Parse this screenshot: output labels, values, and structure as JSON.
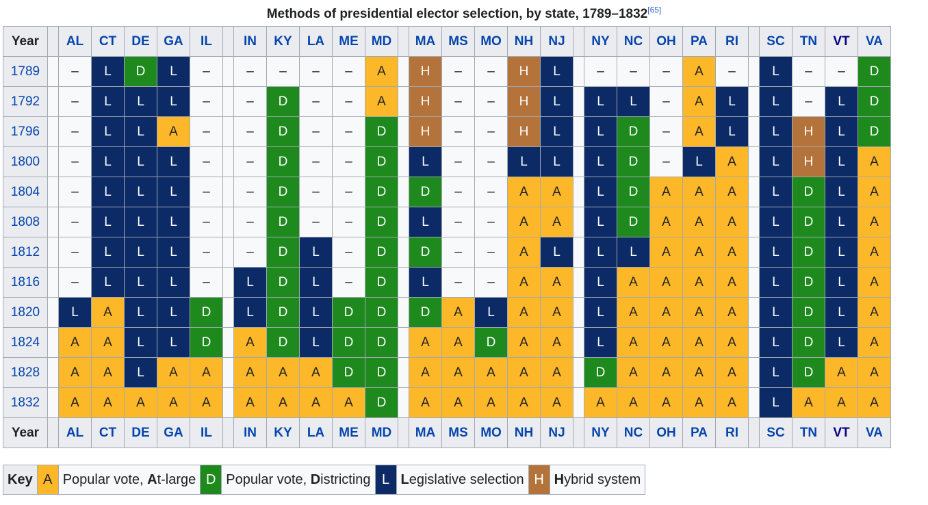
{
  "caption": {
    "title": "Methods of presidential elector selection, by state, 1789–1832",
    "ref": "[65]"
  },
  "header": {
    "year_label": "Year"
  },
  "groups": [
    [
      "AL",
      "CT",
      "DE",
      "GA",
      "IL"
    ],
    [
      "IN",
      "KY",
      "LA",
      "ME",
      "MD"
    ],
    [
      "MA",
      "MS",
      "MO",
      "NH",
      "NJ"
    ],
    [
      "NY",
      "NC",
      "OH",
      "PA",
      "RI"
    ],
    [
      "SC",
      "TN",
      "VT",
      "VA"
    ]
  ],
  "visited_states": [
    "VT"
  ],
  "rows": [
    {
      "year": "1789",
      "values": [
        "–",
        "L",
        "D",
        "L",
        "–",
        "–",
        "–",
        "–",
        "–",
        "A",
        "H",
        "–",
        "–",
        "H",
        "L",
        "–",
        "–",
        "–",
        "A",
        "–",
        "L",
        "–",
        "–",
        "D"
      ]
    },
    {
      "year": "1792",
      "values": [
        "–",
        "L",
        "L",
        "L",
        "–",
        "–",
        "D",
        "–",
        "–",
        "A",
        "H",
        "–",
        "–",
        "H",
        "L",
        "L",
        "L",
        "–",
        "A",
        "L",
        "L",
        "–",
        "L",
        "D"
      ]
    },
    {
      "year": "1796",
      "values": [
        "–",
        "L",
        "L",
        "A",
        "–",
        "–",
        "D",
        "–",
        "–",
        "D",
        "H",
        "–",
        "–",
        "H",
        "L",
        "L",
        "D",
        "–",
        "A",
        "L",
        "L",
        "H",
        "L",
        "D"
      ]
    },
    {
      "year": "1800",
      "values": [
        "–",
        "L",
        "L",
        "L",
        "–",
        "–",
        "D",
        "–",
        "–",
        "D",
        "L",
        "–",
        "–",
        "L",
        "L",
        "L",
        "D",
        "–",
        "L",
        "A",
        "L",
        "H",
        "L",
        "A"
      ]
    },
    {
      "year": "1804",
      "values": [
        "–",
        "L",
        "L",
        "L",
        "–",
        "–",
        "D",
        "–",
        "–",
        "D",
        "D",
        "–",
        "–",
        "A",
        "A",
        "L",
        "D",
        "A",
        "A",
        "A",
        "L",
        "D",
        "L",
        "A"
      ]
    },
    {
      "year": "1808",
      "values": [
        "–",
        "L",
        "L",
        "L",
        "–",
        "–",
        "D",
        "–",
        "–",
        "D",
        "L",
        "–",
        "–",
        "A",
        "A",
        "L",
        "D",
        "A",
        "A",
        "A",
        "L",
        "D",
        "L",
        "A"
      ]
    },
    {
      "year": "1812",
      "values": [
        "–",
        "L",
        "L",
        "L",
        "–",
        "–",
        "D",
        "L",
        "–",
        "D",
        "D",
        "–",
        "–",
        "A",
        "L",
        "L",
        "L",
        "A",
        "A",
        "A",
        "L",
        "D",
        "L",
        "A"
      ]
    },
    {
      "year": "1816",
      "values": [
        "–",
        "L",
        "L",
        "L",
        "–",
        "L",
        "D",
        "L",
        "–",
        "D",
        "L",
        "–",
        "–",
        "A",
        "A",
        "L",
        "A",
        "A",
        "A",
        "A",
        "L",
        "D",
        "L",
        "A"
      ]
    },
    {
      "year": "1820",
      "values": [
        "L",
        "A",
        "L",
        "L",
        "D",
        "L",
        "D",
        "L",
        "D",
        "D",
        "D",
        "A",
        "L",
        "A",
        "A",
        "L",
        "A",
        "A",
        "A",
        "A",
        "L",
        "D",
        "L",
        "A"
      ]
    },
    {
      "year": "1824",
      "values": [
        "A",
        "A",
        "L",
        "L",
        "D",
        "A",
        "D",
        "L",
        "D",
        "D",
        "A",
        "A",
        "D",
        "A",
        "A",
        "L",
        "A",
        "A",
        "A",
        "A",
        "L",
        "D",
        "L",
        "A"
      ]
    },
    {
      "year": "1828",
      "values": [
        "A",
        "A",
        "L",
        "A",
        "A",
        "A",
        "A",
        "A",
        "D",
        "D",
        "A",
        "A",
        "A",
        "A",
        "A",
        "D",
        "A",
        "A",
        "A",
        "A",
        "L",
        "D",
        "A",
        "A"
      ]
    },
    {
      "year": "1832",
      "values": [
        "A",
        "A",
        "A",
        "A",
        "A",
        "A",
        "A",
        "A",
        "A",
        "D",
        "A",
        "A",
        "A",
        "A",
        "A",
        "A",
        "A",
        "A",
        "A",
        "A",
        "L",
        "A",
        "A",
        "A"
      ]
    }
  ],
  "key": {
    "title": "Key",
    "items": [
      {
        "code": "A",
        "bold": "A",
        "before": "Popular vote, ",
        "after": "t-large"
      },
      {
        "code": "D",
        "bold": "D",
        "before": "Popular vote, ",
        "after": "istricting"
      },
      {
        "code": "L",
        "bold": "L",
        "before": "",
        "after": "egislative selection"
      },
      {
        "code": "H",
        "bold": "H",
        "before": "",
        "after": "ybrid system"
      }
    ]
  },
  "colors": {
    "A": "#fdb829",
    "D": "#1e8a1e",
    "L": "#0b2a66",
    "H": "#b3733b",
    "none": "#f8f9fa",
    "link": "#0645ad",
    "link_visited": "#0b0080"
  }
}
